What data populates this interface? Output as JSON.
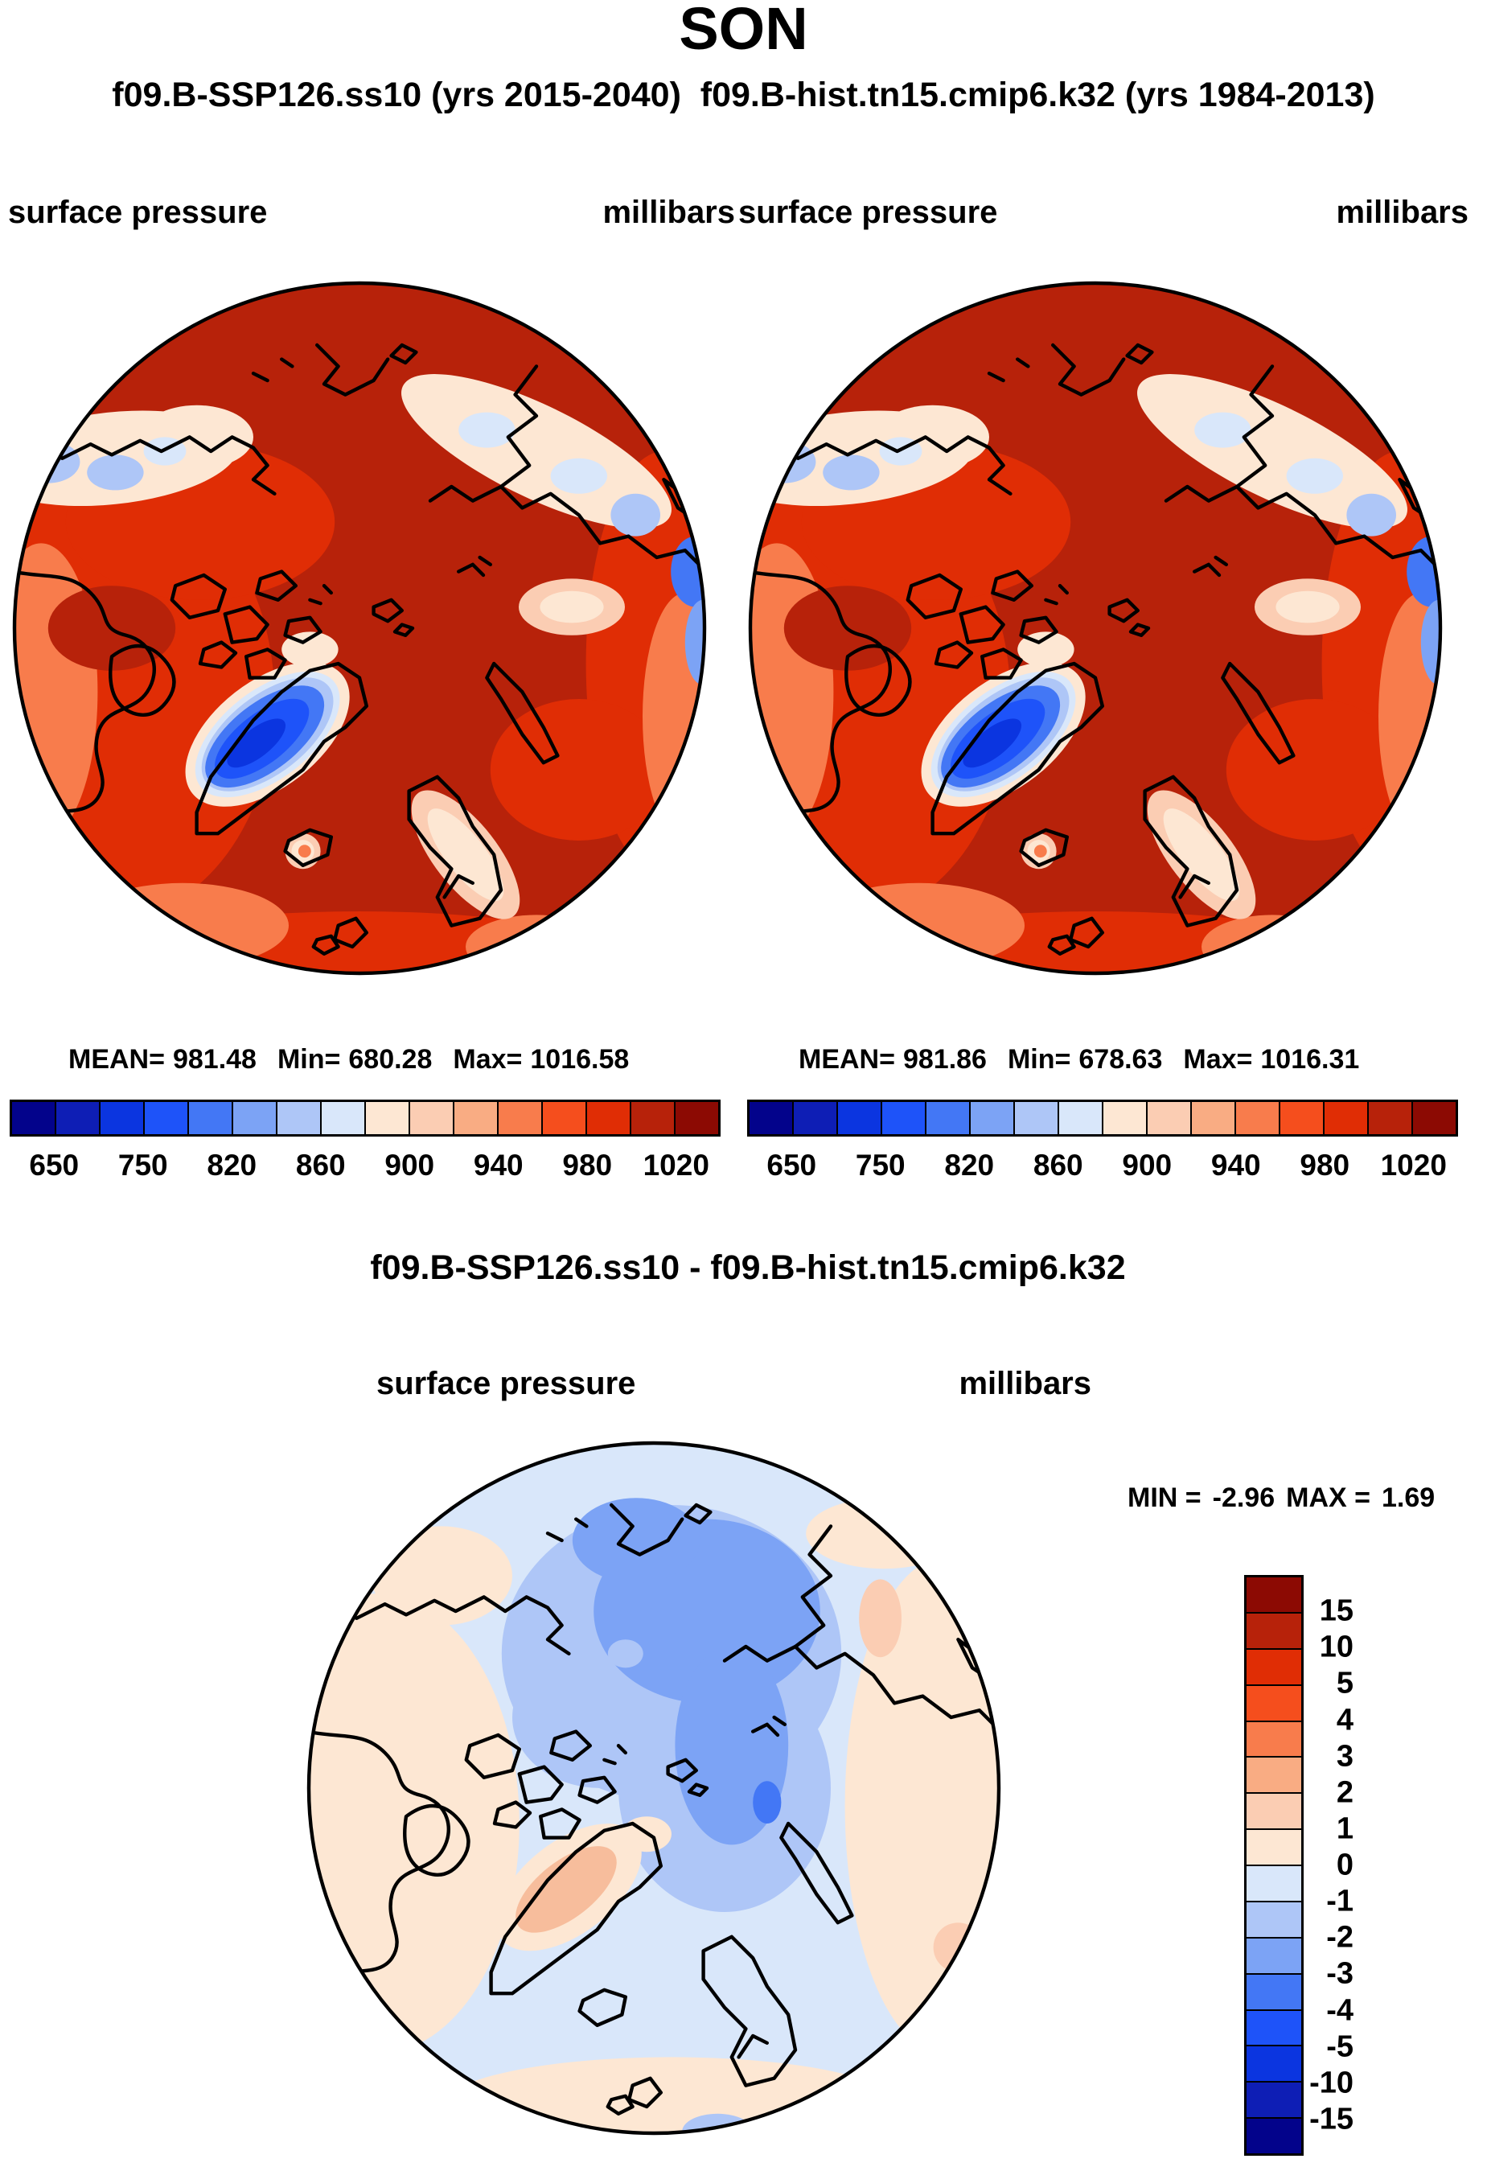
{
  "page": {
    "title": "SON",
    "subtitle": "f09.B-SSP126.ss10 (yrs 2015-2040)  f09.B-hist.tn15.cmip6.k32 (yrs 1984-2013)"
  },
  "panels": [
    {
      "field_label": "surface pressure",
      "units_label": "millibars",
      "stats": {
        "mean_label": "MEAN=",
        "mean_value": "981.48",
        "min_label": "Min=",
        "min_value": "680.28",
        "max_label": "Max=",
        "max_value": "1016.58"
      }
    },
    {
      "field_label": "surface pressure",
      "units_label": "millibars",
      "stats": {
        "mean_label": "MEAN=",
        "mean_value": "981.86",
        "min_label": "Min=",
        "min_value": "678.63",
        "max_label": "Max=",
        "max_value": "1016.31"
      }
    }
  ],
  "colorbar": {
    "colors": [
      "#03038B",
      "#0E1EB5",
      "#0B35E0",
      "#1E53F9",
      "#4377F5",
      "#7CA3F5",
      "#AEC6F7",
      "#D9E7FA",
      "#FDE7D3",
      "#FBCDB3",
      "#F9AC83",
      "#F87C4C",
      "#F54E1D",
      "#E02D05",
      "#B7220A",
      "#8C0A03"
    ],
    "tick_labels": [
      "650",
      "750",
      "820",
      "860",
      "900",
      "940",
      "980",
      "1020"
    ]
  },
  "difference": {
    "title": "f09.B-SSP126.ss10 - f09.B-hist.tn15.cmip6.k32",
    "field_label": "surface pressure",
    "units_label": "millibars",
    "stats": {
      "min_label": "MIN =",
      "min_value": "-2.96",
      "max_label": "MAX =",
      "max_value": "1.69"
    },
    "colorbar": {
      "colors": [
        "#8C0A03",
        "#B7220A",
        "#E02D05",
        "#F54E1D",
        "#F87C4C",
        "#F9AC83",
        "#FBCDB3",
        "#FDE7D3",
        "#D9E7FA",
        "#AEC6F7",
        "#7CA3F5",
        "#4377F5",
        "#1E53F9",
        "#0B35E0",
        "#0E1EB5",
        "#03038B"
      ],
      "tick_labels": [
        "15",
        "10",
        "5",
        "4",
        "3",
        "2",
        "1",
        "0",
        "-1",
        "-2",
        "-3",
        "-4",
        "-5",
        "-10",
        "-15"
      ]
    }
  },
  "chart_data": [
    {
      "type": "heatmap",
      "subtype": "filled-contour-map",
      "projection": "north-polar-stereographic",
      "title": "f09.B-SSP126.ss10 (yrs 2015-2040)",
      "season": "SON",
      "variable": "surface pressure",
      "units": "millibars",
      "mean": 981.48,
      "min": 680.28,
      "max": 1016.58,
      "contour_levels": [
        650,
        700,
        750,
        800,
        820,
        840,
        860,
        880,
        900,
        920,
        940,
        960,
        980,
        1000,
        1020
      ],
      "labeled_levels": [
        650,
        750,
        820,
        860,
        900,
        940,
        980,
        1020
      ],
      "legend_position": "bottom"
    },
    {
      "type": "heatmap",
      "subtype": "filled-contour-map",
      "projection": "north-polar-stereographic",
      "title": "f09.B-hist.tn15.cmip6.k32 (yrs 1984-2013)",
      "season": "SON",
      "variable": "surface pressure",
      "units": "millibars",
      "mean": 981.86,
      "min": 678.63,
      "max": 1016.31,
      "contour_levels": [
        650,
        700,
        750,
        800,
        820,
        840,
        860,
        880,
        900,
        920,
        940,
        960,
        980,
        1000,
        1020
      ],
      "labeled_levels": [
        650,
        750,
        820,
        860,
        900,
        940,
        980,
        1020
      ],
      "legend_position": "bottom"
    },
    {
      "type": "heatmap",
      "subtype": "filled-contour-map",
      "projection": "north-polar-stereographic",
      "title": "f09.B-SSP126.ss10 - f09.B-hist.tn15.cmip6.k32",
      "season": "SON",
      "variable": "surface pressure difference",
      "units": "millibars",
      "min": -2.96,
      "max": 1.69,
      "contour_levels": [
        -15,
        -10,
        -5,
        -4,
        -3,
        -2,
        -1,
        0,
        1,
        2,
        3,
        4,
        5,
        10,
        15
      ],
      "legend_position": "right"
    }
  ]
}
